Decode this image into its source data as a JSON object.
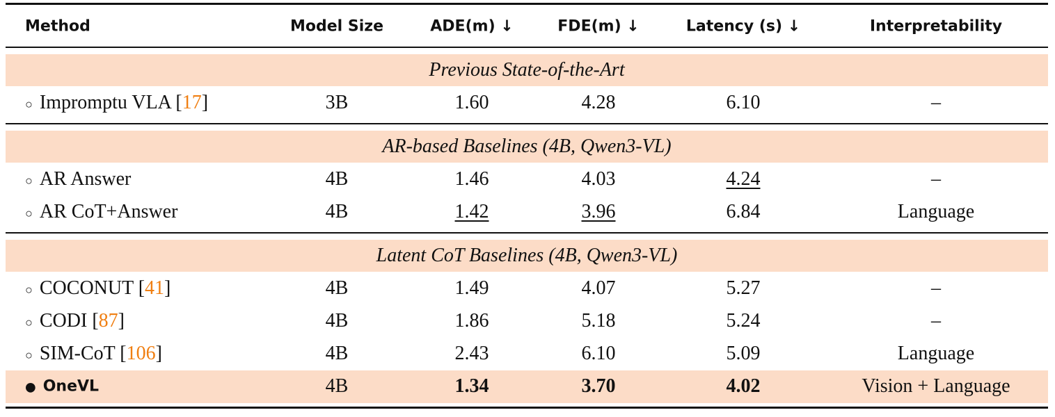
{
  "header": {
    "columns": [
      "Method",
      "Model Size",
      "ADE(m) ↓",
      "FDE(m) ↓",
      "Latency (s) ↓",
      "Interpretability"
    ]
  },
  "sections": [
    {
      "title": "Previous State-of-the-Art",
      "rows": [
        {
          "marker": "○",
          "method": [
            {
              "text": "Impromptu VLA ["
            },
            {
              "text": "17",
              "cite": true
            },
            {
              "text": "]"
            }
          ],
          "cells": [
            "3B",
            "1.60",
            "4.28",
            "6.10",
            "–"
          ]
        }
      ]
    },
    {
      "title": "AR-based Baselines (4B, Qwen3-VL)",
      "rows": [
        {
          "marker": "○",
          "method": [
            {
              "text": "AR Answer"
            }
          ],
          "cells": [
            "4B",
            "1.46",
            "4.03",
            {
              "text": "4.24",
              "underline": true
            },
            "–"
          ]
        },
        {
          "marker": "○",
          "method": [
            {
              "text": "AR CoT+Answer"
            }
          ],
          "cells": [
            "4B",
            {
              "text": "1.42",
              "underline": true
            },
            {
              "text": "3.96",
              "underline": true
            },
            "6.84",
            "Language"
          ]
        }
      ]
    },
    {
      "title": "Latent CoT Baselines (4B, Qwen3-VL)",
      "rows": [
        {
          "marker": "○",
          "method": [
            {
              "text": "COCONUT ["
            },
            {
              "text": "41",
              "cite": true
            },
            {
              "text": "]"
            }
          ],
          "cells": [
            "4B",
            "1.49",
            "4.07",
            "5.27",
            "–"
          ]
        },
        {
          "marker": "○",
          "method": [
            {
              "text": "CODI ["
            },
            {
              "text": "87",
              "cite": true
            },
            {
              "text": "]"
            }
          ],
          "cells": [
            "4B",
            "1.86",
            "5.18",
            "5.24",
            "–"
          ]
        },
        {
          "marker": "○",
          "method": [
            {
              "text": "SIM-CoT ["
            },
            {
              "text": "106",
              "cite": true
            },
            {
              "text": "]"
            }
          ],
          "cells": [
            "4B",
            "2.43",
            "6.10",
            "5.09",
            "Language"
          ]
        },
        {
          "marker": "●",
          "method": [
            {
              "text": "OneVL"
            }
          ],
          "bold": true,
          "highlight": true,
          "cells": [
            "4B",
            {
              "text": "1.34",
              "bold": true
            },
            {
              "text": "3.70",
              "bold": true
            },
            {
              "text": "4.02",
              "bold": true
            },
            "Vision + Language"
          ]
        }
      ]
    }
  ]
}
